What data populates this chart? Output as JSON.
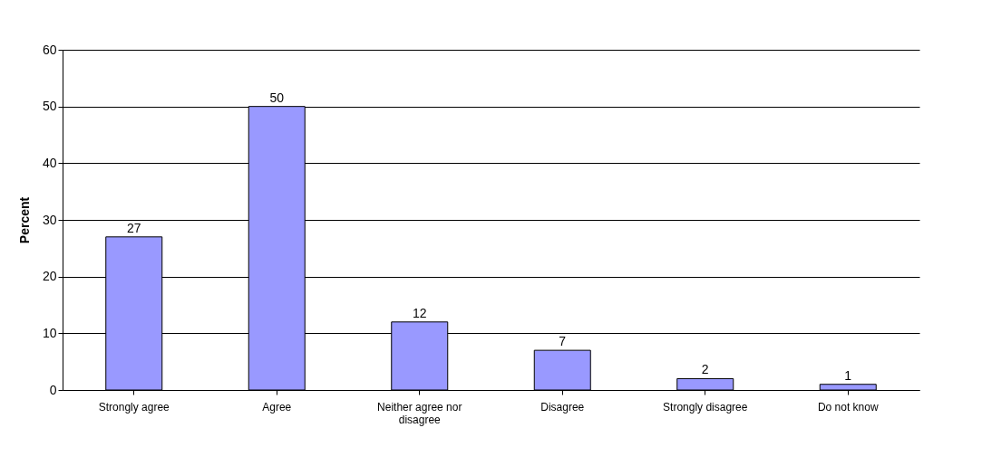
{
  "chart_data": {
    "type": "bar",
    "ylabel": "Percent",
    "categories": [
      "Strongly agree",
      "Agree",
      "Neither agree nor disagree",
      "Disagree",
      "Strongly disagree",
      "Do not know"
    ],
    "values": [
      27,
      50,
      12,
      7,
      2,
      1
    ],
    "data_labels": true,
    "color": "#9999ff",
    "ylim": [
      0,
      60
    ],
    "yticks": [
      0,
      10,
      20,
      30,
      40,
      50,
      60
    ],
    "grid": "y"
  }
}
